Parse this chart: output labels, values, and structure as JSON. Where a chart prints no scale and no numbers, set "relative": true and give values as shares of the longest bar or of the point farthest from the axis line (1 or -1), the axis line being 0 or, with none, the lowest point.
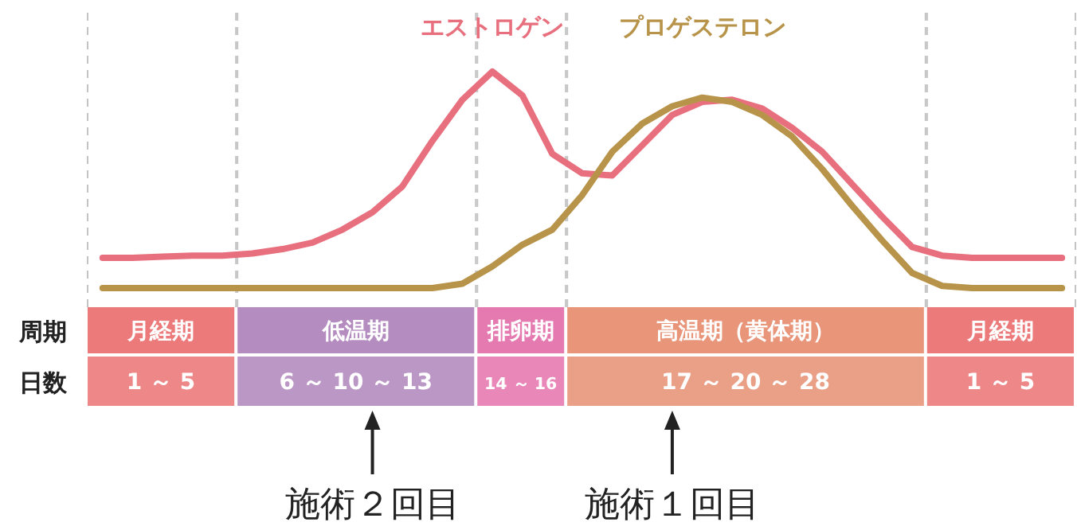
{
  "chart_data": {
    "type": "line",
    "relative": true,
    "legend": false,
    "line_style": "solid",
    "categories": [
      null,
      null,
      null,
      null,
      null,
      null,
      null,
      null,
      null,
      null,
      null,
      null,
      null,
      null,
      null,
      null,
      null,
      null,
      null,
      null,
      null,
      null,
      null,
      null,
      null,
      null,
      null,
      null,
      null,
      null,
      null,
      null,
      null
    ],
    "series": [
      {
        "name": "エストロゲン",
        "color": "#e8707e",
        "values": [
          0.14,
          0.14,
          0.145,
          0.15,
          0.15,
          0.16,
          0.18,
          0.21,
          0.27,
          0.35,
          0.47,
          0.68,
          0.87,
          1.0,
          0.89,
          0.62,
          0.53,
          0.52,
          0.66,
          0.8,
          0.86,
          0.87,
          0.83,
          0.74,
          0.63,
          0.48,
          0.33,
          0.19,
          0.15,
          0.14,
          0.14,
          0.14,
          0.14
        ]
      },
      {
        "name": "プロゲステロン",
        "color": "#b8944a",
        "values": [
          0,
          0,
          0,
          0,
          0,
          0,
          0,
          0,
          0,
          0,
          0,
          0,
          0.02,
          0.1,
          0.2,
          0.27,
          0.43,
          0.63,
          0.76,
          0.84,
          0.88,
          0.86,
          0.8,
          0.7,
          0.55,
          0.38,
          0.22,
          0.07,
          0.01,
          0,
          0,
          0,
          0
        ]
      }
    ],
    "annotations": [
      "周期",
      "日数",
      "月経期",
      "低温期",
      "排卵期",
      "高温期（黄体期）",
      "月経期",
      "1 ～ 5",
      "6 ～ 10 ～ 13",
      "14 ～ 16",
      "17 ～ 20 ～ 28",
      "1 ～ 5",
      "施術２回目",
      "施術１回目"
    ]
  }
}
